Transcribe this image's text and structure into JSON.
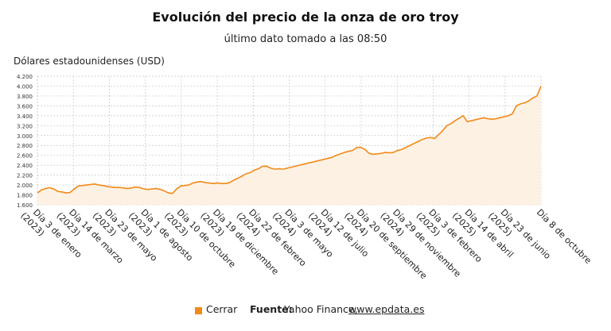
{
  "title": "Evolución del precio de la onza de oro troy",
  "subtitle": "último dato tomado a las 08:50",
  "footer": {
    "legend_label": "Cerrar",
    "source_label": "Fuente:",
    "source_name": "Yahoo Finance,",
    "source_link": "www.epdata.es"
  },
  "colors": {
    "line": "#f28a18",
    "fill": "#fdf1e4",
    "grid": "#c8c8c8"
  },
  "chart_data": {
    "type": "area",
    "title": "Evolución del precio de la onza de oro troy",
    "subtitle": "último dato tomado a las 08:50",
    "ylabel": "Dólares estadounidenses (USD)",
    "ylim": [
      1600,
      4200
    ],
    "y_ticks": [
      "1.600",
      "1.800",
      "2.000",
      "2.200",
      "2.400",
      "2.600",
      "2.800",
      "3.000",
      "3.200",
      "3.400",
      "3.600",
      "3.800",
      "4.000",
      "4.200"
    ],
    "y_tick_values": [
      1600,
      1800,
      2000,
      2200,
      2400,
      2600,
      2800,
      3000,
      3200,
      3400,
      3600,
      3800,
      4000,
      4200
    ],
    "x_ticks": [
      {
        "label": "Día 3 de enero",
        "year": "(2023)"
      },
      {
        "label": "Día 14 de marzo",
        "year": "(2023)"
      },
      {
        "label": "Día 23 de mayo",
        "year": "(2023)"
      },
      {
        "label": "Día 1 de agosto",
        "year": "(2023)"
      },
      {
        "label": "Día 10 de octubre",
        "year": "(2023)"
      },
      {
        "label": "Día 19 de diciembre",
        "year": "(2023)"
      },
      {
        "label": "Día 22 de febrero",
        "year": "(2024)"
      },
      {
        "label": "Día 3 de mayo",
        "year": "(2024)"
      },
      {
        "label": "Día 12 de julio",
        "year": "(2024)"
      },
      {
        "label": "Día 20 de septiembre",
        "year": "(2024)"
      },
      {
        "label": "Día 29 de noviembre",
        "year": "(2024)"
      },
      {
        "label": "Día 3 de febrero",
        "year": "(2025)"
      },
      {
        "label": "Día 14 de abril",
        "year": "(2025)"
      },
      {
        "label": "Día 23 de junio",
        "year": "(2025)"
      },
      {
        "label": "Día 8 de octubre",
        "year": ""
      }
    ],
    "grid": true,
    "legend": "bottom",
    "series": [
      {
        "name": "Cerrar",
        "values": [
          1840,
          1900,
          1930,
          1945,
          1920,
          1870,
          1860,
          1840,
          1850,
          1920,
          1980,
          1990,
          2000,
          2010,
          2020,
          2000,
          1990,
          1970,
          1960,
          1950,
          1950,
          1940,
          1930,
          1940,
          1960,
          1950,
          1920,
          1910,
          1920,
          1930,
          1910,
          1880,
          1840,
          1830,
          1920,
          1980,
          1990,
          2000,
          2040,
          2060,
          2070,
          2050,
          2040,
          2030,
          2040,
          2030,
          2030,
          2050,
          2100,
          2140,
          2180,
          2230,
          2250,
          2300,
          2330,
          2380,
          2380,
          2340,
          2320,
          2330,
          2320,
          2340,
          2360,
          2380,
          2400,
          2420,
          2440,
          2460,
          2480,
          2500,
          2520,
          2540,
          2560,
          2600,
          2630,
          2660,
          2680,
          2700,
          2760,
          2760,
          2720,
          2640,
          2620,
          2630,
          2640,
          2660,
          2650,
          2660,
          2700,
          2720,
          2760,
          2800,
          2840,
          2880,
          2920,
          2950,
          2960,
          2940,
          3020,
          3100,
          3200,
          3240,
          3300,
          3350,
          3400,
          3280,
          3300,
          3320,
          3340,
          3360,
          3340,
          3330,
          3340,
          3360,
          3380,
          3400,
          3440,
          3600,
          3640,
          3660,
          3700,
          3760,
          3800,
          4000
        ]
      }
    ]
  }
}
